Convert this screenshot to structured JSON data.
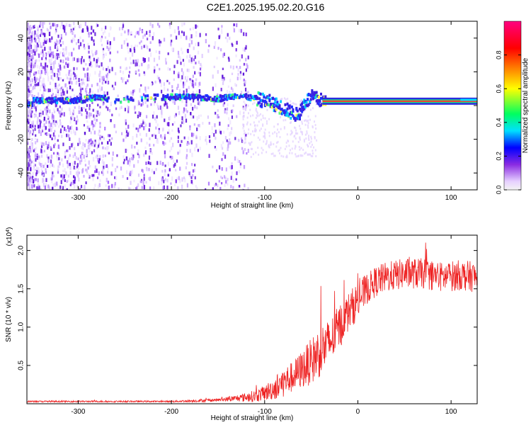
{
  "title": "C2E1.2025.195.02.20.G16",
  "chart_data": [
    {
      "type": "heatmap",
      "xlabel": "Height of straight line (km)",
      "ylabel": "Frequency (Hz)",
      "xlim": [
        -355,
        128
      ],
      "ylim": [
        -50,
        50
      ],
      "xticks": [
        -300,
        -200,
        -100,
        0,
        100
      ],
      "xtick_labels": [
        "-300",
        "-200",
        "-100",
        "0",
        "100"
      ],
      "yticks": [
        -40,
        -20,
        0,
        20,
        40
      ],
      "ytick_labels": [
        "-40",
        "-20",
        "0",
        "20",
        "40"
      ],
      "grid": false,
      "colorbar": {
        "label": "Normalized spectral amplitude",
        "range": [
          0,
          1
        ],
        "ticks": [
          0.0,
          0.2,
          0.4,
          0.6,
          0.8
        ],
        "tick_labels": [
          "0.0",
          "0.2",
          "0.4",
          "0.6",
          "0.8"
        ],
        "colors": [
          "#f0f0f0",
          "#e6d0ff",
          "#8a2be2",
          "#0000ff",
          "#00e0ff",
          "#00ff60",
          "#ffff00",
          "#ff8000",
          "#ff0000",
          "#ff0080"
        ]
      },
      "dominant_track": [
        {
          "x": -350,
          "y": 3
        },
        {
          "x": -300,
          "y": 3
        },
        {
          "x": -280,
          "y": 5
        },
        {
          "x": -260,
          "y": 3
        },
        {
          "x": -220,
          "y": 5
        },
        {
          "x": -180,
          "y": 5
        },
        {
          "x": -150,
          "y": 4
        },
        {
          "x": -130,
          "y": 6
        },
        {
          "x": -110,
          "y": 4
        },
        {
          "x": -95,
          "y": 2
        },
        {
          "x": -80,
          "y": -2
        },
        {
          "x": -65,
          "y": -6
        },
        {
          "x": -58,
          "y": 2
        },
        {
          "x": -50,
          "y": 5
        },
        {
          "x": -40,
          "y": 3
        },
        {
          "x": -30,
          "y": 2
        },
        {
          "x": 0,
          "y": 1
        },
        {
          "x": 50,
          "y": 1
        },
        {
          "x": 100,
          "y": 1
        },
        {
          "x": 128,
          "y": 1
        }
      ]
    },
    {
      "type": "line",
      "xlabel": "Height of straight line (km)",
      "ylabel": "SNR (10 * v/v)",
      "scale_label": "(x10^4)",
      "xlim": [
        -355,
        128
      ],
      "ylim": [
        0,
        2.2
      ],
      "xticks": [
        -300,
        -200,
        -100,
        0,
        100
      ],
      "xtick_labels": [
        "-300",
        "-200",
        "-100",
        "0",
        "100"
      ],
      "yticks": [
        0.5,
        1.0,
        1.5,
        2.0
      ],
      "ytick_labels": [
        "0.5",
        "1.0",
        "1.5",
        "2.0"
      ],
      "grid": false,
      "series": [
        {
          "color": "#ee2222",
          "x": [
            -355,
            -300,
            -250,
            -200,
            -170,
            -150,
            -130,
            -110,
            -100,
            -90,
            -80,
            -70,
            -60,
            -50,
            -40,
            -30,
            -20,
            -10,
            0,
            10,
            20,
            30,
            50,
            70,
            90,
            110,
            128
          ],
          "y": [
            0.03,
            0.03,
            0.03,
            0.03,
            0.04,
            0.05,
            0.07,
            0.1,
            0.14,
            0.2,
            0.28,
            0.35,
            0.45,
            0.55,
            0.7,
            0.8,
            1.0,
            1.2,
            1.35,
            1.5,
            1.6,
            1.65,
            1.7,
            1.7,
            1.65,
            1.68,
            1.65
          ],
          "noise": [
            0.01,
            0.01,
            0.01,
            0.01,
            0.02,
            0.02,
            0.04,
            0.08,
            0.1,
            0.15,
            0.2,
            0.2,
            0.25,
            0.3,
            0.35,
            0.3,
            0.3,
            0.25,
            0.25,
            0.2,
            0.2,
            0.2,
            0.2,
            0.2,
            0.2,
            0.2,
            0.2
          ]
        }
      ]
    }
  ]
}
